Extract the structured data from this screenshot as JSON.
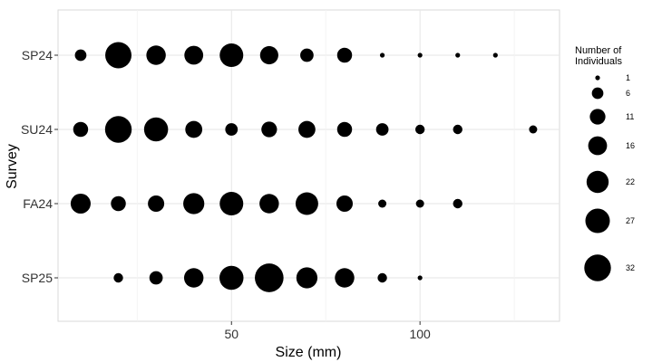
{
  "chart_data": {
    "type": "scatter",
    "subtype": "bubble",
    "xlabel": "Size (mm)",
    "ylabel": "Survey",
    "xlim": [
      4,
      137
    ],
    "x_ticks": [
      50,
      100
    ],
    "y_categories": [
      "SP24",
      "SU24",
      "FA24",
      "SP25"
    ],
    "grid": true,
    "legend_position": "right",
    "legend": {
      "title_lines": [
        "Number of",
        "Individuals"
      ],
      "sizes": [
        1,
        6,
        11,
        16,
        22,
        27,
        32
      ]
    },
    "point_color": "#000000",
    "series": [
      {
        "survey": "SP24",
        "points": [
          {
            "x": 10,
            "n": 6
          },
          {
            "x": 20,
            "n": 31
          },
          {
            "x": 30,
            "n": 17
          },
          {
            "x": 40,
            "n": 16
          },
          {
            "x": 50,
            "n": 25
          },
          {
            "x": 60,
            "n": 15
          },
          {
            "x": 70,
            "n": 8
          },
          {
            "x": 80,
            "n": 10
          },
          {
            "x": 90,
            "n": 1
          },
          {
            "x": 100,
            "n": 1
          },
          {
            "x": 110,
            "n": 1
          },
          {
            "x": 120,
            "n": 1
          }
        ]
      },
      {
        "survey": "SU24",
        "points": [
          {
            "x": 10,
            "n": 10
          },
          {
            "x": 20,
            "n": 32
          },
          {
            "x": 30,
            "n": 26
          },
          {
            "x": 40,
            "n": 13
          },
          {
            "x": 50,
            "n": 7
          },
          {
            "x": 60,
            "n": 11
          },
          {
            "x": 70,
            "n": 13
          },
          {
            "x": 80,
            "n": 10
          },
          {
            "x": 90,
            "n": 7
          },
          {
            "x": 100,
            "n": 4
          },
          {
            "x": 110,
            "n": 4
          },
          {
            "x": 130,
            "n": 3
          }
        ]
      },
      {
        "survey": "FA24",
        "points": [
          {
            "x": 10,
            "n": 18
          },
          {
            "x": 20,
            "n": 10
          },
          {
            "x": 30,
            "n": 12
          },
          {
            "x": 40,
            "n": 20
          },
          {
            "x": 50,
            "n": 25
          },
          {
            "x": 60,
            "n": 17
          },
          {
            "x": 70,
            "n": 23
          },
          {
            "x": 80,
            "n": 12
          },
          {
            "x": 90,
            "n": 3
          },
          {
            "x": 100,
            "n": 3
          },
          {
            "x": 110,
            "n": 4
          }
        ]
      },
      {
        "survey": "SP25",
        "points": [
          {
            "x": 20,
            "n": 4
          },
          {
            "x": 30,
            "n": 8
          },
          {
            "x": 40,
            "n": 17
          },
          {
            "x": 50,
            "n": 26
          },
          {
            "x": 60,
            "n": 37
          },
          {
            "x": 70,
            "n": 20
          },
          {
            "x": 80,
            "n": 17
          },
          {
            "x": 90,
            "n": 4
          },
          {
            "x": 100,
            "n": 1
          }
        ]
      }
    ]
  }
}
